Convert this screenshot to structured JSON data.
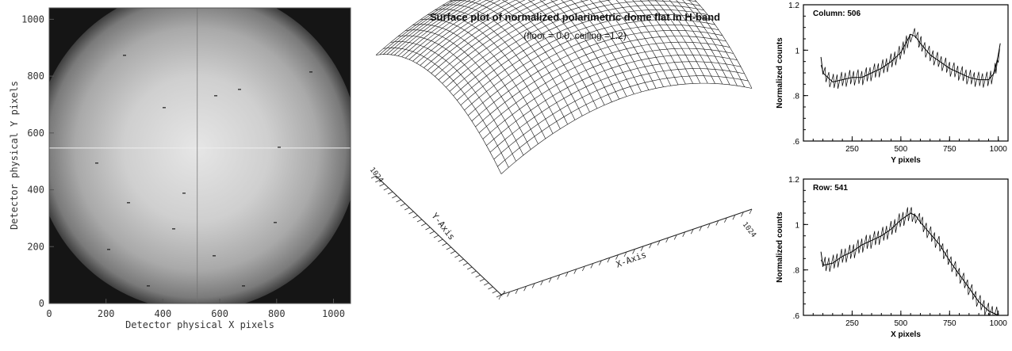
{
  "chart_data": [
    {
      "type": "heatmap",
      "title": "",
      "xlabel": "Detector physical X pixels",
      "ylabel": "Detector physical Y pixels",
      "xlim": [
        0,
        1060
      ],
      "ylim": [
        0,
        1040
      ],
      "x_ticks": [
        "0",
        "200",
        "400",
        "600",
        "800",
        "1000"
      ],
      "y_ticks": [
        "0",
        "200",
        "400",
        "600",
        "800",
        "1000"
      ],
      "colormap": "grayscale",
      "description_values": {
        "aperture_center_x": 520,
        "aperture_center_y": 560,
        "aperture_radius": 560,
        "bright_peak_x": 520,
        "bright_peak_y": 560
      }
    },
    {
      "type": "surface",
      "title": "Surface plot of normalized polarimetric dome flat in H-band",
      "subtitle": "(floor = 0.0, ceiling =1.2)",
      "x_axis_label": "X-Axis",
      "y_axis_label": "Y-Axis",
      "x_range": [
        "1",
        "1024"
      ],
      "y_range": [
        "1",
        "1024"
      ],
      "zlim": [
        0.0,
        1.2
      ]
    },
    {
      "type": "line",
      "annotation": "Column: 506",
      "xlabel": "Y pixels",
      "ylabel": "Normalized counts",
      "xlim": [
        0,
        1050
      ],
      "ylim": [
        0.6,
        1.2
      ],
      "x_ticks": [
        "250",
        "500",
        "750",
        "1000"
      ],
      "y_ticks": [
        "1.2",
        "1",
        ".8",
        ".6"
      ],
      "series": [
        {
          "x": [
            90,
            100,
            150,
            200,
            250,
            300,
            350,
            400,
            450,
            500,
            525,
            550,
            575,
            600,
            650,
            700,
            750,
            800,
            850,
            900,
            950,
            980,
            1000,
            1010
          ],
          "y": [
            0.97,
            0.9,
            0.86,
            0.87,
            0.88,
            0.88,
            0.9,
            0.92,
            0.95,
            0.99,
            1.03,
            1.07,
            1.06,
            1.03,
            0.98,
            0.95,
            0.92,
            0.9,
            0.88,
            0.87,
            0.87,
            0.9,
            0.98,
            1.03
          ]
        }
      ]
    },
    {
      "type": "line",
      "annotation": "Row: 541",
      "xlabel": "X pixels",
      "ylabel": "Normalized counts",
      "xlim": [
        0,
        1050
      ],
      "ylim": [
        0.6,
        1.2
      ],
      "x_ticks": [
        "250",
        "500",
        "750",
        "1000"
      ],
      "y_ticks": [
        "1.2",
        "1",
        ".8",
        ".6"
      ],
      "series": [
        {
          "x": [
            90,
            100,
            150,
            200,
            250,
            300,
            350,
            400,
            450,
            500,
            550,
            575,
            600,
            650,
            700,
            750,
            800,
            850,
            900,
            950,
            1000
          ],
          "y": [
            0.88,
            0.82,
            0.83,
            0.86,
            0.88,
            0.91,
            0.93,
            0.95,
            0.98,
            1.02,
            1.05,
            1.04,
            1.01,
            0.96,
            0.91,
            0.84,
            0.78,
            0.72,
            0.66,
            0.62,
            0.6
          ]
        }
      ]
    }
  ]
}
